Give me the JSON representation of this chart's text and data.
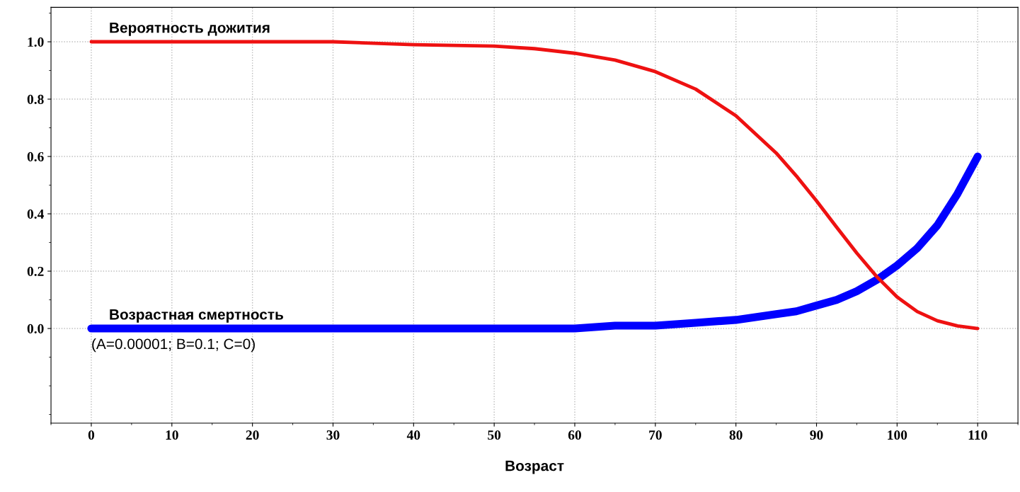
{
  "chart_data": {
    "type": "line",
    "xlabel": "Возраст",
    "x": [
      0,
      10,
      20,
      30,
      40,
      50,
      55,
      60,
      65,
      70,
      75,
      80,
      85,
      87.5,
      90,
      92.5,
      95,
      97.5,
      100,
      102.5,
      105,
      107.5,
      110
    ],
    "series": [
      {
        "name": "Вероятность дожития",
        "color": "#ee1111",
        "values": [
          1.0,
          1.0,
          1.0,
          1.0,
          0.99,
          0.985,
          0.976,
          0.96,
          0.936,
          0.896,
          0.835,
          0.742,
          0.612,
          0.532,
          0.445,
          0.353,
          0.263,
          0.18,
          0.11,
          0.059,
          0.027,
          0.009,
          0.0
        ]
      },
      {
        "name": "Возрастная смертность",
        "color": "#0000ff",
        "values": [
          0.0,
          0.0,
          0.0,
          0.0,
          0.0,
          0.0,
          0.0,
          0.0,
          0.01,
          0.01,
          0.02,
          0.03,
          0.05,
          0.06,
          0.08,
          0.1,
          0.13,
          0.17,
          0.22,
          0.28,
          0.36,
          0.47,
          0.6
        ]
      }
    ],
    "annotations": [
      "(A=0.00001; B=0.1; C=0)"
    ],
    "xlim": [
      -5,
      115
    ],
    "ylim": [
      -0.33,
      1.12
    ],
    "xticks": [
      0,
      10,
      20,
      30,
      40,
      50,
      60,
      70,
      80,
      90,
      100,
      110
    ],
    "yticks": [
      {
        "value": 0,
        "label": "0.0"
      },
      {
        "value": 0.2,
        "label": "0.2"
      },
      {
        "value": 0.4,
        "label": "0.4"
      },
      {
        "value": 0.6,
        "label": "0.6"
      },
      {
        "value": 0.8,
        "label": "0.8"
      },
      {
        "value": 1,
        "label": "1.0"
      }
    ],
    "grid": true,
    "legend": false,
    "marker": "none",
    "line_style": "solid"
  }
}
